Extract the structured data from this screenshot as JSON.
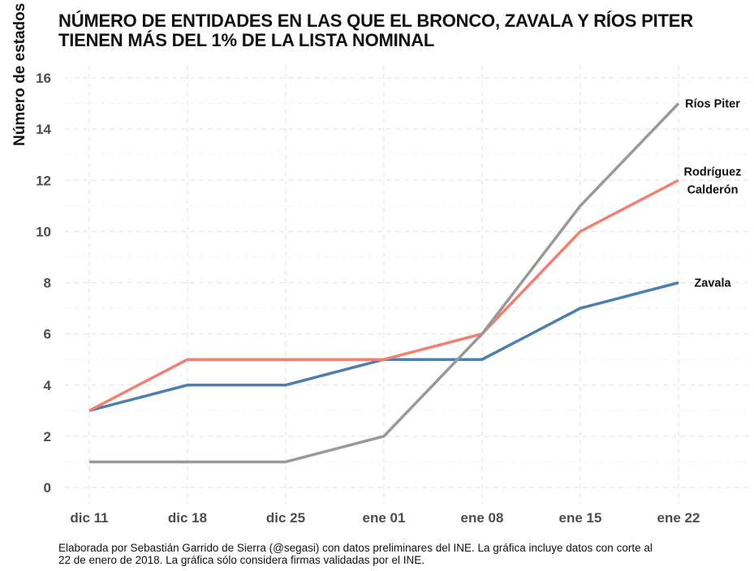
{
  "chart_data": {
    "type": "line",
    "title": "NÚMERO DE ENTIDADES EN LAS QUE EL BRONCO, ZAVALA Y RÍOS PITER",
    "title_line2": "TIENEN MÁS DEL 1% DE LA LISTA NOMINAL",
    "xlabel": "",
    "ylabel": "Número de estados",
    "categories": [
      "dic 11",
      "dic 18",
      "dic 25",
      "ene 01",
      "ene 08",
      "ene 15",
      "ene 22"
    ],
    "yticks": [
      0,
      2,
      4,
      6,
      8,
      10,
      12,
      14,
      16
    ],
    "ylim": [
      0,
      16
    ],
    "grid": true,
    "series": [
      {
        "name": "Ríos Piter",
        "label_lines": [
          "Ríos Piter"
        ],
        "color": "#999999",
        "values": [
          1,
          1,
          1,
          2,
          6,
          11,
          15
        ]
      },
      {
        "name": "Rodríguez Calderón",
        "label_lines": [
          "Rodríguez",
          "Calderón"
        ],
        "color": "#f08070",
        "values": [
          3,
          5,
          5,
          5,
          6,
          10,
          12
        ]
      },
      {
        "name": "Zavala",
        "label_lines": [
          "Zavala"
        ],
        "color": "#4a7faf",
        "values": [
          3,
          4,
          4,
          5,
          5,
          7,
          8
        ]
      }
    ],
    "caption_line1": "Elaborada por Sebastián Garrido de Sierra (@segasi) con datos preliminares del INE. La gráfica incluye datos con corte al",
    "caption_line2": "22 de enero de 2018. La gráfica sólo considera firmas validadas por el INE."
  }
}
